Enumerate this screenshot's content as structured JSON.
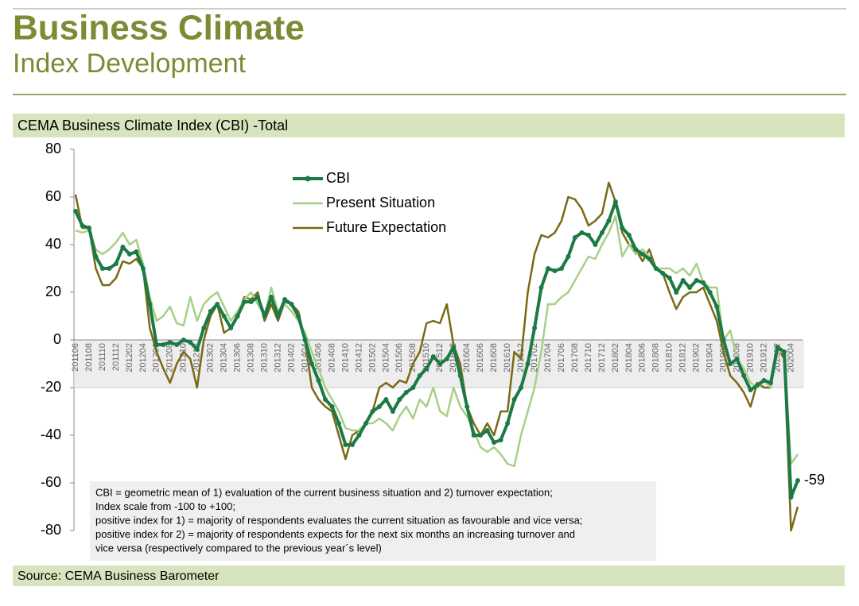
{
  "header": {
    "title": "Business Climate",
    "subtitle": "Index Development"
  },
  "chart_data": {
    "type": "line",
    "title": "CEMA Business Climate Index (CBI) -Total",
    "source": "Source: CEMA Business Barometer",
    "note": [
      "CBI = geometric mean of 1) evaluation of the current business situation and 2) turnover expectation;",
      "Index scale from -100 to +100;",
      "positive index for 1) = majority of respondents evaluates the current situation as favourable and vice versa;",
      "positive index for 2) = majority of respondents expects for the next six months an increasing turnover and",
      "vice versa (respectively compared to the previous year´s level)"
    ],
    "legend": "upper left",
    "ylim": [
      -80,
      80
    ],
    "yticks": [
      -80,
      -60,
      -40,
      -20,
      0,
      20,
      40,
      60,
      80
    ],
    "categories": [
      "201106",
      null,
      "201108",
      null,
      "201110",
      null,
      "201112",
      null,
      "201202",
      null,
      "201204",
      null,
      "201206",
      null,
      "201208",
      null,
      "201210",
      null,
      "201212",
      null,
      "201302",
      null,
      "201304",
      null,
      "201306",
      null,
      "201308",
      null,
      "201310",
      null,
      "201312",
      null,
      "201402",
      null,
      "201404",
      null,
      "201406",
      null,
      "201408",
      null,
      "201410",
      null,
      "201412",
      null,
      "201502",
      null,
      "201504",
      null,
      "201506",
      null,
      "201508",
      null,
      "201510",
      null,
      "201512",
      null,
      "201602",
      null,
      "201604",
      null,
      "201606",
      null,
      "201608",
      null,
      "201610",
      null,
      "201612",
      null,
      "201702",
      null,
      "201704",
      null,
      "201706",
      null,
      "201708",
      null,
      "201710",
      null,
      "201712",
      null,
      "201802",
      null,
      "201804",
      null,
      "201806",
      null,
      "201808",
      null,
      "201810",
      null,
      "201812",
      null,
      "201902",
      null,
      "201904",
      null,
      "201906",
      null,
      "201908",
      null,
      "201910",
      null,
      "201912",
      null,
      "202002",
      null,
      "202004",
      null
    ],
    "series": [
      {
        "name": "CBI",
        "color": "#1b7a46",
        "markers": true,
        "values": [
          54,
          48,
          47,
          35,
          30,
          30,
          32,
          39,
          36,
          37,
          30,
          15,
          -2,
          -2,
          -1,
          -2,
          0,
          -1,
          -4,
          5,
          12,
          15,
          10,
          5,
          10,
          16,
          16,
          18,
          10,
          18,
          10,
          17,
          15,
          10,
          0,
          -10,
          -17,
          -25,
          -28,
          -35,
          -44,
          -44,
          -40,
          -35,
          -30,
          -28,
          -25,
          -30,
          -25,
          -22,
          -20,
          -15,
          -12,
          -7,
          -10,
          -8,
          -3,
          -15,
          -28,
          -40,
          -40,
          -38,
          -43,
          -42,
          -35,
          -25,
          -20,
          -10,
          5,
          22,
          30,
          29,
          30,
          35,
          43,
          45,
          44,
          40,
          45,
          50,
          58,
          47,
          44,
          38,
          36,
          34,
          30,
          28,
          26,
          20,
          25,
          22,
          25,
          24,
          20,
          14,
          0,
          -10,
          -8,
          -15,
          -21,
          -19,
          -17,
          -18,
          -3,
          -5,
          -66,
          -59
        ],
        "value_labels": [
          null,
          null,
          null,
          null,
          null,
          null,
          null,
          null,
          null,
          null,
          null,
          null,
          null,
          null,
          null,
          null,
          null,
          null,
          null,
          null,
          null,
          null,
          null,
          null,
          null,
          null,
          null,
          null,
          null,
          null,
          null,
          null,
          null,
          null,
          null,
          null,
          null,
          null,
          null,
          null,
          null,
          null,
          null,
          null,
          null,
          null,
          null,
          null,
          null,
          null,
          null,
          null,
          null,
          null,
          null,
          null,
          null,
          null,
          null,
          null,
          null,
          null,
          null,
          null,
          null,
          null,
          null,
          null,
          null,
          null,
          null,
          null,
          null,
          null,
          null,
          null,
          null,
          null,
          null,
          null,
          null,
          null,
          null,
          null,
          null,
          null,
          null,
          null,
          null,
          null,
          null,
          null,
          null,
          null,
          null,
          null,
          null,
          null,
          null,
          null,
          null,
          null,
          null,
          null,
          null,
          null,
          null,
          "-59"
        ]
      },
      {
        "name": "Present Situation",
        "color": "#a8cf88",
        "values": [
          46,
          45,
          46,
          38,
          36,
          38,
          41,
          45,
          40,
          42,
          32,
          18,
          8,
          10,
          14,
          7,
          6,
          18,
          8,
          15,
          18,
          20,
          14,
          8,
          12,
          17,
          20,
          15,
          10,
          22,
          12,
          15,
          12,
          8,
          3,
          -5,
          -12,
          -20,
          -25,
          -30,
          -37,
          -38,
          -38,
          -35,
          -35,
          -33,
          -35,
          -38,
          -32,
          -28,
          -33,
          -25,
          -28,
          -20,
          -30,
          -32,
          -20,
          -28,
          -32,
          -38,
          -45,
          -47,
          -45,
          -48,
          -52,
          -53,
          -40,
          -30,
          -20,
          -5,
          15,
          15,
          18,
          20,
          25,
          30,
          35,
          34,
          40,
          45,
          52,
          35,
          40,
          36,
          38,
          35,
          30,
          30,
          30,
          28,
          30,
          27,
          32,
          24,
          22,
          22,
          0,
          4,
          -8,
          -12,
          -18,
          -20,
          -17,
          -20,
          -5,
          -5,
          -52,
          -48
        ]
      },
      {
        "name": "Future Expectation",
        "color": "#7a6914",
        "values": [
          61,
          47,
          47,
          30,
          23,
          23,
          26,
          33,
          32,
          34,
          30,
          5,
          -5,
          -12,
          -18,
          -10,
          -5,
          -8,
          -20,
          0,
          10,
          15,
          3,
          5,
          10,
          18,
          17,
          20,
          8,
          15,
          8,
          16,
          15,
          12,
          0,
          -20,
          -25,
          -28,
          -30,
          -40,
          -50,
          -40,
          -38,
          -35,
          -30,
          -20,
          -18,
          -20,
          -17,
          -18,
          -10,
          -5,
          7,
          8,
          7,
          15,
          -2,
          -10,
          -28,
          -35,
          -40,
          -35,
          -40,
          -30,
          -30,
          -5,
          -8,
          20,
          36,
          44,
          43,
          45,
          50,
          60,
          59,
          55,
          48,
          50,
          53,
          66,
          58,
          45,
          40,
          38,
          33,
          38,
          30,
          28,
          20,
          13,
          18,
          20,
          20,
          22,
          15,
          8,
          -5,
          -15,
          -18,
          -22,
          -28,
          -18,
          -20,
          -20,
          -3,
          -8,
          -80,
          -70
        ]
      }
    ]
  }
}
